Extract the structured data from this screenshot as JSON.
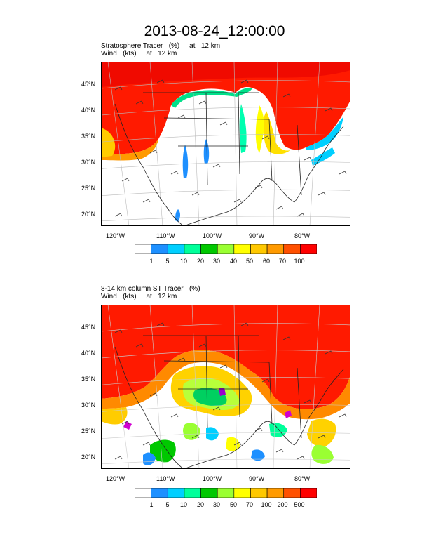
{
  "title": "2013-08-24_12:00:00",
  "panels": [
    {
      "caption_line1": "Stratosphere Tracer   (%)     at   12 km",
      "caption_line2": "Wind   (kts)     at   12 km",
      "lat_labels": [
        "45°N",
        "40°N",
        "35°N",
        "30°N",
        "25°N",
        "20°N"
      ],
      "lon_labels": [
        "120°W",
        "110°W",
        "100°W",
        "90°W",
        "80°W"
      ],
      "colorbar": {
        "labels": [
          "1",
          "5",
          "10",
          "20",
          "30",
          "40",
          "50",
          "60",
          "70",
          "100"
        ],
        "colors": [
          "#ffffff",
          "#1e90ff",
          "#00cfff",
          "#00ff9a",
          "#00c800",
          "#9aff32",
          "#ffff00",
          "#ffc800",
          "#ff9a00",
          "#ff5000",
          "#ff0000"
        ]
      }
    },
    {
      "caption_line1": "8-14 km column ST Tracer   (%)",
      "caption_line2": "Wind   (kts)     at   12 km",
      "lat_labels": [
        "45°N",
        "40°N",
        "35°N",
        "30°N",
        "25°N",
        "20°N"
      ],
      "lon_labels": [
        "120°W",
        "110°W",
        "100°W",
        "90°W",
        "80°W"
      ],
      "colorbar": {
        "labels": [
          "1",
          "5",
          "10",
          "20",
          "30",
          "50",
          "70",
          "100",
          "200",
          "500"
        ],
        "colors": [
          "#ffffff",
          "#1e90ff",
          "#00cfff",
          "#00ff9a",
          "#00c800",
          "#9aff32",
          "#ffff00",
          "#ffc800",
          "#ff9a00",
          "#ff5000",
          "#ff0000"
        ]
      }
    }
  ]
}
